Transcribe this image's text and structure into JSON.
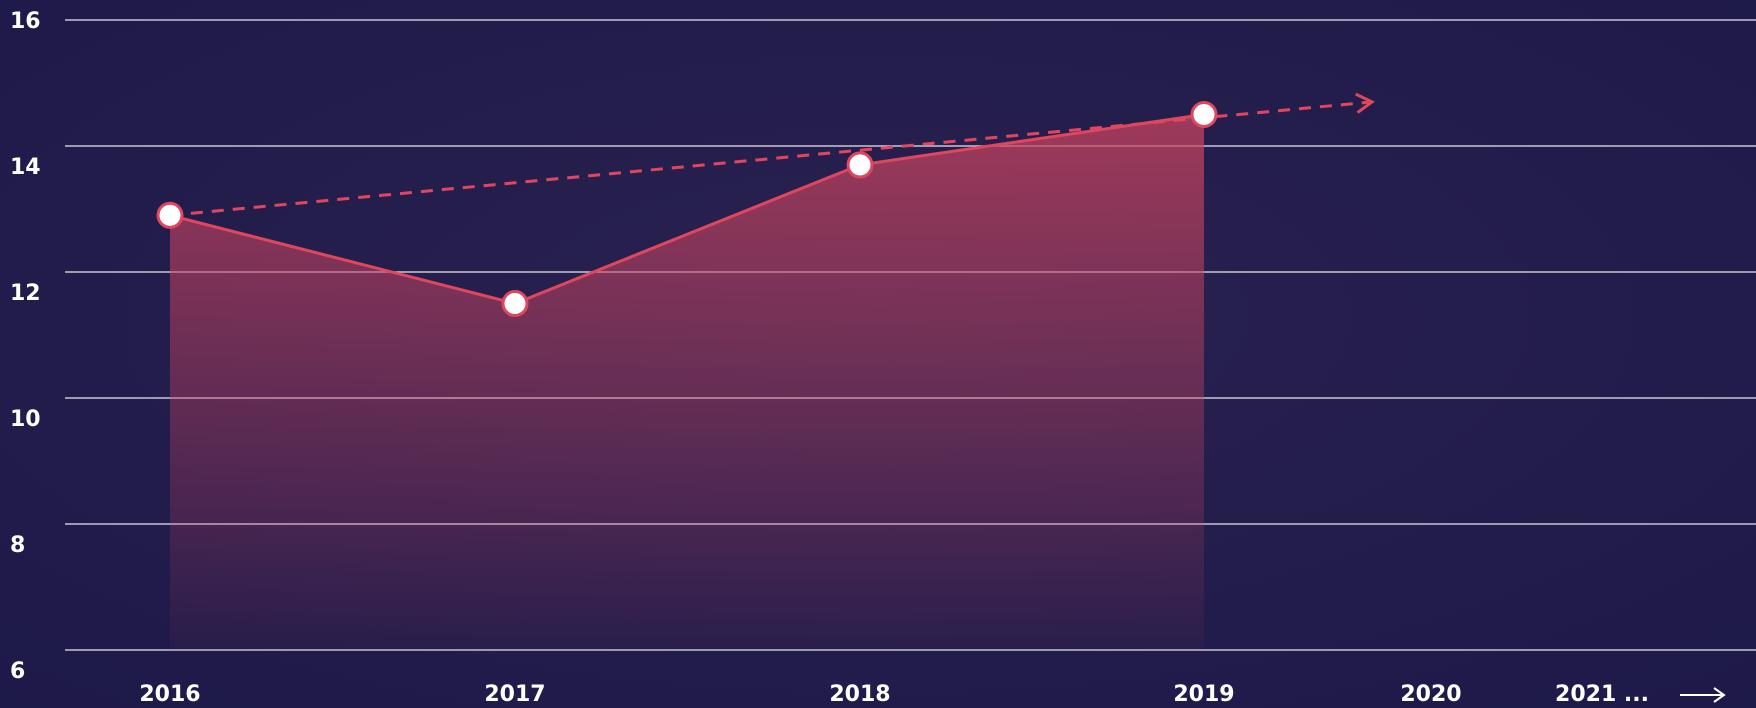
{
  "chart_data": {
    "type": "line",
    "categories": [
      "2016",
      "2017",
      "2018",
      "2019",
      "2020",
      "2021 ..."
    ],
    "series": [
      {
        "color": "#e0465e",
        "values": [
          12.9,
          11.5,
          13.7,
          14.5,
          null,
          null
        ]
      }
    ],
    "trend": {
      "color": "#e0465e",
      "values": [
        12.9,
        14.7
      ]
    },
    "ylim": [
      6,
      16
    ],
    "yticks": [
      6,
      8,
      10,
      12,
      14,
      16
    ],
    "grid": true
  }
}
